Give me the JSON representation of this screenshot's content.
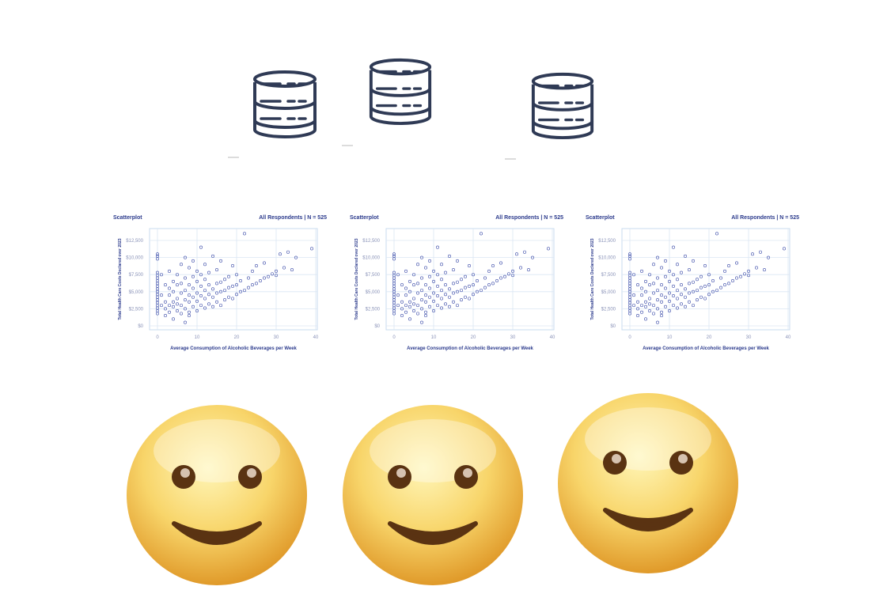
{
  "icons": {
    "database": [
      "database-icon",
      "database-icon",
      "database-icon"
    ],
    "face": [
      "smiling-face-icon",
      "smiling-face-icon",
      "smiling-face-icon"
    ]
  },
  "colors": {
    "db_stroke": "#2f3a55",
    "chart_text": "#2b3a8c",
    "point_stroke": "#3a4aa8",
    "grid": "#dbe6f3",
    "face_light": "#fff3a8",
    "face_dark": "#e3a22d",
    "eye": "#5a3312",
    "mouth": "#5a3312"
  },
  "charts": [
    {
      "title": "Scatterplot",
      "info": "All Respondents | N = 525",
      "xlabel": "Average Consumption of Alcoholic Beverages per Week",
      "ylabel": "Total Health Care Costs Declared over 2023"
    },
    {
      "title": "Scatterplot",
      "info": "All Respondents | N = 525",
      "xlabel": "Average Consumption of Alcoholic Beverages per Week",
      "ylabel": "Total Health Care Costs Declared over 2023"
    },
    {
      "title": "Scatterplot",
      "info": "All Respondents | N = 525",
      "xlabel": "Average Consumption of Alcoholic Beverages per Week",
      "ylabel": "Total Health Care Costs Declared over 2023"
    }
  ],
  "chart_data": {
    "type": "scatter",
    "title": "Scatterplot",
    "subtitle": "All Respondents | N = 525",
    "xlabel": "Average Consumption of Alcoholic Beverages per Week",
    "ylabel": "Total Health Care Costs Declared over 2023",
    "xlim": [
      0,
      40
    ],
    "ylim": [
      0,
      12500
    ],
    "xticks": [
      "0",
      "10",
      "20",
      "30",
      "40"
    ],
    "yticks": [
      "$0",
      "$2,500",
      "$5,000",
      "$7,500",
      "$10,000",
      "$12,500"
    ],
    "grid": true,
    "points": [
      [
        0,
        1800
      ],
      [
        0,
        2200
      ],
      [
        0,
        2600
      ],
      [
        0,
        3000
      ],
      [
        0,
        3400
      ],
      [
        0,
        3800
      ],
      [
        0,
        4200
      ],
      [
        0,
        4600
      ],
      [
        0,
        5000
      ],
      [
        0,
        5400
      ],
      [
        0,
        5800
      ],
      [
        0,
        6200
      ],
      [
        0,
        6600
      ],
      [
        0,
        7000
      ],
      [
        0,
        7400
      ],
      [
        0,
        7800
      ],
      [
        0,
        10200
      ],
      [
        0,
        10500
      ],
      [
        0,
        9800
      ],
      [
        1,
        3000
      ],
      [
        1,
        4500
      ],
      [
        1,
        7500
      ],
      [
        2,
        1500
      ],
      [
        2,
        3500
      ],
      [
        2,
        6000
      ],
      [
        2,
        2500
      ],
      [
        3,
        2000
      ],
      [
        3,
        3000
      ],
      [
        3,
        4500
      ],
      [
        3,
        5500
      ],
      [
        3,
        8000
      ],
      [
        4,
        1000
      ],
      [
        4,
        3500
      ],
      [
        4,
        5000
      ],
      [
        4,
        6500
      ],
      [
        4,
        2800
      ],
      [
        5,
        2200
      ],
      [
        5,
        4000
      ],
      [
        5,
        6000
      ],
      [
        5,
        7500
      ],
      [
        5,
        3200
      ],
      [
        6,
        1800
      ],
      [
        6,
        3000
      ],
      [
        6,
        4800
      ],
      [
        6,
        6200
      ],
      [
        6,
        9000
      ],
      [
        7,
        2500
      ],
      [
        7,
        3800
      ],
      [
        7,
        5200
      ],
      [
        7,
        7000
      ],
      [
        7,
        10000
      ],
      [
        7,
        500
      ],
      [
        8,
        2000
      ],
      [
        8,
        3500
      ],
      [
        8,
        4500
      ],
      [
        8,
        6000
      ],
      [
        8,
        8500
      ],
      [
        8,
        1500
      ],
      [
        9,
        2800
      ],
      [
        9,
        4200
      ],
      [
        9,
        5500
      ],
      [
        9,
        7200
      ],
      [
        9,
        9500
      ],
      [
        10,
        2200
      ],
      [
        10,
        3600
      ],
      [
        10,
        4800
      ],
      [
        10,
        6500
      ],
      [
        10,
        8000
      ],
      [
        11,
        3000
      ],
      [
        11,
        4400
      ],
      [
        11,
        5800
      ],
      [
        11,
        7500
      ],
      [
        11,
        11500
      ],
      [
        12,
        2600
      ],
      [
        12,
        4000
      ],
      [
        12,
        5200
      ],
      [
        12,
        6800
      ],
      [
        12,
        9000
      ],
      [
        13,
        3200
      ],
      [
        13,
        4600
      ],
      [
        13,
        6000
      ],
      [
        13,
        7800
      ],
      [
        14,
        2800
      ],
      [
        14,
        4200
      ],
      [
        14,
        5400
      ],
      [
        14,
        10200
      ],
      [
        15,
        3500
      ],
      [
        15,
        4800
      ],
      [
        15,
        6200
      ],
      [
        15,
        8200
      ],
      [
        16,
        3000
      ],
      [
        16,
        5000
      ],
      [
        16,
        6400
      ],
      [
        16,
        9500
      ],
      [
        17,
        3800
      ],
      [
        17,
        5200
      ],
      [
        17,
        6800
      ],
      [
        18,
        4200
      ],
      [
        18,
        5600
      ],
      [
        18,
        7200
      ],
      [
        19,
        4000
      ],
      [
        19,
        5800
      ],
      [
        19,
        8800
      ],
      [
        20,
        4600
      ],
      [
        20,
        6000
      ],
      [
        20,
        7500
      ],
      [
        21,
        5000
      ],
      [
        21,
        6600
      ],
      [
        22,
        5200
      ],
      [
        22,
        13500
      ],
      [
        23,
        5600
      ],
      [
        23,
        7000
      ],
      [
        24,
        6000
      ],
      [
        24,
        8000
      ],
      [
        25,
        6200
      ],
      [
        25,
        8800
      ],
      [
        26,
        6600
      ],
      [
        27,
        7000
      ],
      [
        27,
        9200
      ],
      [
        28,
        7200
      ],
      [
        29,
        7600
      ],
      [
        30,
        8000
      ],
      [
        30,
        7400
      ],
      [
        31,
        10500
      ],
      [
        32,
        8500
      ],
      [
        33,
        10800
      ],
      [
        34,
        8200
      ],
      [
        35,
        10000
      ],
      [
        39,
        11300
      ]
    ]
  }
}
